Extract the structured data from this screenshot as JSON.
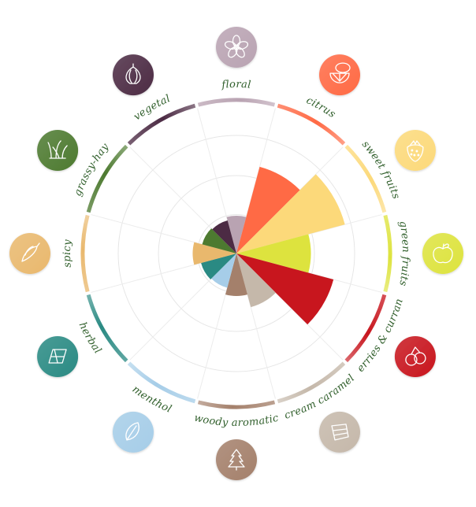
{
  "chart_data": {
    "type": "polar-area",
    "title": "",
    "rmax": 10,
    "grid": true,
    "categories": [
      {
        "label": "floral",
        "value": 3.2,
        "color": "#b9a3b2",
        "icon": "flower-icon"
      },
      {
        "label": "citrus",
        "value": 7.6,
        "color": "#ff6a45",
        "icon": "lemon-slice-icon"
      },
      {
        "label": "sweet fruits",
        "value": 9.5,
        "color": "#fcd97a",
        "icon": "strawberry-icon"
      },
      {
        "label": "green fruits",
        "value": 6.3,
        "color": "#dde33e",
        "icon": "green-apple-icon"
      },
      {
        "label": "berries & currant",
        "value": 8.5,
        "color": "#c8161e",
        "icon": "berries-icon"
      },
      {
        "label": "cream caramel",
        "value": 4.7,
        "color": "#c5b8aa",
        "icon": "caramel-icon"
      },
      {
        "label": "woody aromatic",
        "value": 3.6,
        "color": "#a4806b",
        "icon": "pine-tree-icon"
      },
      {
        "label": "menthol",
        "value": 3.0,
        "color": "#a6cde8",
        "icon": "mint-leaf-icon"
      },
      {
        "label": "herbal",
        "value": 3.1,
        "color": "#2a8a83",
        "icon": "herb-leaf-icon"
      },
      {
        "label": "spicy",
        "value": 3.7,
        "color": "#e9b86d",
        "icon": "chili-icon"
      },
      {
        "label": "grassy-hay",
        "value": 3.0,
        "color": "#4d7a30",
        "icon": "grass-icon"
      },
      {
        "label": "vegetal",
        "value": 2.9,
        "color": "#4c2b44",
        "icon": "onion-icon"
      }
    ]
  }
}
